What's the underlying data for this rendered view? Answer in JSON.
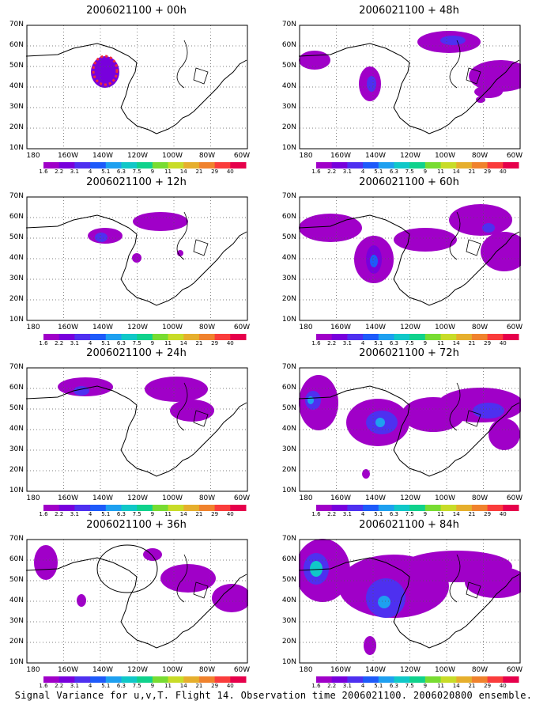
{
  "caption": "Signal Variance for u,v,T. Flight 14. Observation time 2006021100. 2006020800 ensemble.",
  "lat_labels": [
    "70N",
    "60N",
    "50N",
    "40N",
    "30N",
    "20N",
    "10N"
  ],
  "lon_labels": [
    "180",
    "160W",
    "140W",
    "120W",
    "100W",
    "80W",
    "60W"
  ],
  "colorbar": {
    "labels": [
      "1.6",
      "2.2",
      "3.1",
      "4",
      "5.1",
      "6.3",
      "7.5",
      "9",
      "11",
      "14",
      "21",
      "29",
      "40"
    ],
    "colors": [
      "#a000c8",
      "#7800dc",
      "#4e30f0",
      "#1e5afa",
      "#1ea0f0",
      "#10c8c8",
      "#10d28c",
      "#78dc32",
      "#c8dc28",
      "#e6af2d",
      "#f0822d",
      "#fa3c3c",
      "#e6004b"
    ]
  },
  "panels": [
    {
      "title": "2006021100 + 00h"
    },
    {
      "title": "2006021100 + 48h"
    },
    {
      "title": "2006021100 + 12h"
    },
    {
      "title": "2006021100 + 60h"
    },
    {
      "title": "2006021100 + 24h"
    },
    {
      "title": "2006021100 + 72h"
    },
    {
      "title": "2006021100 + 36h"
    },
    {
      "title": "2006021100 + 84h"
    }
  ]
}
